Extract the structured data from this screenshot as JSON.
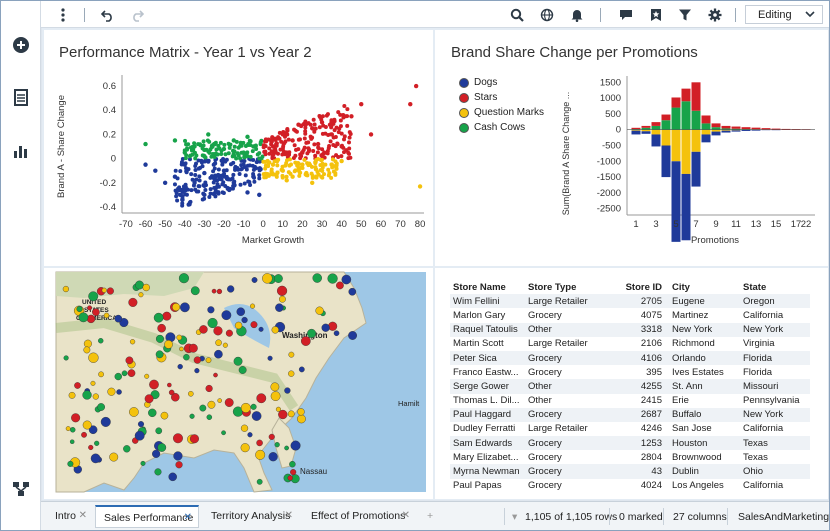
{
  "toolbar": {
    "mode_label": "Editing",
    "icons": [
      "more-vertical-icon",
      "undo-icon",
      "redo-icon",
      "search-icon",
      "globe-icon",
      "bell-icon",
      "comment-icon",
      "bookmark-icon",
      "filter-icon",
      "gear-icon",
      "chevron-down-icon"
    ]
  },
  "rail": {
    "icons": [
      "add-icon",
      "document-icon",
      "bar-chart-icon",
      "flow-icon"
    ]
  },
  "scatter": {
    "title": "Performance Matrix - Year 1 vs Year 2",
    "xlabel": "Market Growth",
    "ylabel": "Brand A - Share Change",
    "xticks": [
      "-70",
      "-60",
      "-50",
      "-40",
      "-30",
      "-20",
      "-10",
      "0",
      "10",
      "20",
      "30",
      "40",
      "50",
      "60",
      "70",
      "80"
    ],
    "yticks": [
      "0.6",
      "0.4",
      "0.2",
      "0",
      "-0.2",
      "-0.4"
    ]
  },
  "bars": {
    "title": "Brand Share Change per Promotions",
    "xlabel": "Promotions",
    "ylabel": "Sum(Brand A Share Change ...",
    "yticks": [
      "1500",
      "1000",
      "500",
      "0",
      "-500",
      "-1000",
      "-1500",
      "-2000",
      "-2500"
    ],
    "xticks": [
      "1",
      "3",
      "5",
      "7",
      "9",
      "11",
      "13",
      "15",
      "17",
      "22"
    ],
    "legend": [
      {
        "label": "Dogs",
        "color": "#1f3a9a"
      },
      {
        "label": "Stars",
        "color": "#d21f26"
      },
      {
        "label": "Question Marks",
        "color": "#f4c20d"
      },
      {
        "label": "Cash Cows",
        "color": "#17a34a"
      }
    ]
  },
  "chart_data": [
    {
      "type": "scatter",
      "title": "Performance Matrix - Year 1 vs Year 2",
      "xlabel": "Market Growth",
      "ylabel": "Brand A - Share Change",
      "xlim": [
        -72,
        82
      ],
      "ylim": [
        -0.45,
        0.65
      ],
      "series": [
        {
          "name": "Dogs",
          "color": "#1f3a9a",
          "points": [
            [
              -55,
              -0.1
            ],
            [
              -50,
              -0.2
            ],
            [
              -45,
              -0.15
            ],
            [
              -40,
              -0.05
            ],
            [
              -35,
              -0.2
            ],
            [
              -30,
              -0.3
            ],
            [
              -25,
              -0.15
            ],
            [
              -20,
              -0.1
            ],
            [
              -15,
              -0.2
            ],
            [
              -10,
              -0.05
            ],
            [
              -5,
              -0.15
            ],
            [
              -2,
              -0.3
            ],
            [
              -60,
              -0.05
            ],
            [
              -42,
              -0.3
            ],
            [
              -38,
              -0.38
            ],
            [
              -30,
              -0.12
            ],
            [
              -18,
              -0.25
            ],
            [
              -8,
              -0.28
            ]
          ]
        },
        {
          "name": "Stars",
          "color": "#d21f26",
          "points": [
            [
              5,
              0.1
            ],
            [
              10,
              0.2
            ],
            [
              15,
              0.15
            ],
            [
              20,
              0.05
            ],
            [
              25,
              0.25
            ],
            [
              30,
              0.3
            ],
            [
              35,
              0.2
            ],
            [
              40,
              0.1
            ],
            [
              45,
              0.35
            ],
            [
              50,
              0.45
            ],
            [
              55,
              0.2
            ],
            [
              75,
              0.45
            ],
            [
              78,
              0.6
            ],
            [
              12,
              0.05
            ],
            [
              18,
              0.28
            ],
            [
              28,
              0.12
            ]
          ]
        },
        {
          "name": "Question Marks",
          "color": "#f4c20d",
          "points": [
            [
              5,
              -0.05
            ],
            [
              10,
              -0.1
            ],
            [
              15,
              -0.15
            ],
            [
              20,
              -0.05
            ],
            [
              25,
              -0.2
            ],
            [
              30,
              -0.1
            ],
            [
              35,
              -0.05
            ],
            [
              40,
              -0.02
            ],
            [
              12,
              -0.18
            ],
            [
              22,
              -0.12
            ],
            [
              80,
              -0.23
            ]
          ]
        },
        {
          "name": "Cash Cows",
          "color": "#17a34a",
          "points": [
            [
              -40,
              0.05
            ],
            [
              -35,
              0.1
            ],
            [
              -30,
              0.02
            ],
            [
              -25,
              0.12
            ],
            [
              -20,
              0.08
            ],
            [
              -15,
              0.15
            ],
            [
              -10,
              0.05
            ],
            [
              -5,
              0.1
            ],
            [
              -45,
              0.15
            ],
            [
              -60,
              0.12
            ],
            [
              -28,
              0.2
            ],
            [
              -8,
              0.18
            ]
          ]
        }
      ]
    },
    {
      "type": "bar",
      "title": "Brand Share Change per Promotions",
      "xlabel": "Promotions",
      "ylabel": "Sum(Brand A Share Change ...",
      "ylim": [
        -2700,
        1700
      ],
      "categories": [
        "1",
        "2",
        "3",
        "4",
        "5",
        "6",
        "7",
        "8",
        "9",
        "10",
        "11",
        "12",
        "13",
        "14",
        "15",
        "16",
        "17",
        "22"
      ],
      "series": [
        {
          "name": "Dogs",
          "values": [
            -120,
            -80,
            -380,
            -1000,
            -2550,
            -2100,
            -1100,
            -250,
            -120,
            -60,
            -40,
            -30,
            -20,
            -10,
            -10,
            -5,
            -5,
            -5
          ]
        },
        {
          "name": "Question Marks",
          "values": [
            -30,
            -50,
            -150,
            -500,
            -1000,
            -1400,
            -700,
            -150,
            -60,
            -30,
            -20,
            -10,
            -10,
            -5,
            -5,
            0,
            0,
            0
          ]
        },
        {
          "name": "Cash Cows",
          "values": [
            20,
            60,
            120,
            300,
            700,
            900,
            600,
            200,
            80,
            40,
            30,
            20,
            15,
            10,
            5,
            5,
            5,
            5
          ]
        },
        {
          "name": "Stars",
          "values": [
            40,
            60,
            120,
            180,
            320,
            400,
            900,
            250,
            120,
            80,
            70,
            60,
            50,
            40,
            30,
            20,
            15,
            10
          ]
        }
      ]
    }
  ],
  "map": {
    "labels": [
      "UNITED",
      "STATES",
      "OF AMERICA",
      "Washington",
      "Hamilt",
      "Nassau"
    ]
  },
  "table": {
    "headers": [
      "Store Name",
      "Store Type",
      "Store ID",
      "City",
      "State"
    ],
    "rows": [
      [
        "Wim Fellini",
        "Large Retailer",
        "2705",
        "Eugene",
        "Oregon"
      ],
      [
        "Marlon Gary",
        "Grocery",
        "4075",
        "Martinez",
        "California"
      ],
      [
        "Raquel Tatoulis",
        "Other",
        "3318",
        "New York",
        "New York"
      ],
      [
        "Martin Scott",
        "Large Retailer",
        "2106",
        "Richmond",
        "Virginia"
      ],
      [
        "Peter Sica",
        "Grocery",
        "4106",
        "Orlando",
        "Florida"
      ],
      [
        "Franco Eastw...",
        "Grocery",
        "395",
        "Ives Estates",
        "Florida"
      ],
      [
        "Serge Gower",
        "Other",
        "4255",
        "St. Ann",
        "Missouri"
      ],
      [
        "Thomas L. Dil...",
        "Other",
        "2415",
        "Erie",
        "Pennsylvania"
      ],
      [
        "Paul Haggard",
        "Grocery",
        "2687",
        "Buffalo",
        "New York"
      ],
      [
        "Dudley Ferratti",
        "Large Retailer",
        "4246",
        "San Jose",
        "California"
      ],
      [
        "Sam Edwards",
        "Grocery",
        "1253",
        "Houston",
        "Texas"
      ],
      [
        "Mary Elizabet...",
        "Grocery",
        "2804",
        "Brownwood",
        "Texas"
      ],
      [
        "Myrna Newman",
        "Grocery",
        "43",
        "Dublin",
        "Ohio"
      ],
      [
        "Paul Papas",
        "Grocery",
        "4024",
        "Los Angeles",
        "California"
      ]
    ]
  },
  "tabs": [
    {
      "label": "Intro"
    },
    {
      "label": "Sales Performance"
    },
    {
      "label": "Territory Analysis"
    },
    {
      "label": "Effect of Promotions"
    }
  ],
  "status": {
    "rows": "1,105 of 1,105 rows",
    "marked": "0 marked",
    "columns": "27 columns",
    "source": "SalesAndMarketing"
  }
}
